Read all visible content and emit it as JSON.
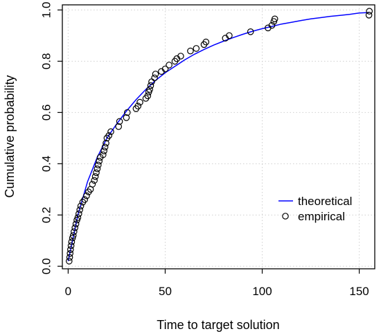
{
  "chart_data": {
    "type": "scatter",
    "xlabel": "Time to target solution",
    "ylabel": "Cumulative probability",
    "xlim": [
      -3,
      158
    ],
    "ylim": [
      -0.01,
      1.02
    ],
    "x_ticks": [
      "0",
      "50",
      "100",
      "150"
    ],
    "y_ticks": [
      "0.0",
      "0.2",
      "0.4",
      "0.6",
      "0.8",
      "1.0"
    ],
    "grid": true,
    "legend_position": "right",
    "series": [
      {
        "name": "theoretical",
        "kind": "line",
        "color": "#0000ff",
        "x": [
          0,
          5,
          10,
          15,
          20,
          25,
          30,
          35,
          40,
          45,
          50,
          55,
          60,
          65,
          70,
          75,
          80,
          85,
          90,
          95,
          100,
          105,
          110,
          115,
          120,
          125,
          130,
          135,
          140,
          145,
          150,
          155
        ],
        "values": [
          0.02,
          0.2,
          0.33,
          0.425,
          0.5,
          0.555,
          0.605,
          0.65,
          0.69,
          0.725,
          0.755,
          0.78,
          0.805,
          0.827,
          0.846,
          0.863,
          0.878,
          0.892,
          0.905,
          0.917,
          0.927,
          0.936,
          0.945,
          0.952,
          0.959,
          0.965,
          0.97,
          0.975,
          0.979,
          0.983,
          0.988,
          0.99
        ]
      },
      {
        "name": "empirical",
        "kind": "points",
        "color": "#000000",
        "points": [
          [
            0.5,
            0.02
          ],
          [
            0.8,
            0.035
          ],
          [
            1.0,
            0.05
          ],
          [
            1.2,
            0.065
          ],
          [
            1.5,
            0.08
          ],
          [
            1.8,
            0.095
          ],
          [
            2.2,
            0.11
          ],
          [
            2.6,
            0.12
          ],
          [
            3.0,
            0.135
          ],
          [
            3.5,
            0.15
          ],
          [
            4.0,
            0.165
          ],
          [
            4.5,
            0.18
          ],
          [
            5.0,
            0.19
          ],
          [
            5.5,
            0.205
          ],
          [
            6.0,
            0.22
          ],
          [
            6.5,
            0.235
          ],
          [
            7.5,
            0.25
          ],
          [
            8.5,
            0.26
          ],
          [
            9.5,
            0.275
          ],
          [
            10.5,
            0.29
          ],
          [
            11.5,
            0.3
          ],
          [
            12.5,
            0.32
          ],
          [
            13.5,
            0.335
          ],
          [
            14.0,
            0.35
          ],
          [
            14.5,
            0.365
          ],
          [
            15.0,
            0.38
          ],
          [
            15.5,
            0.395
          ],
          [
            16.0,
            0.41
          ],
          [
            16.5,
            0.425
          ],
          [
            18.0,
            0.435
          ],
          [
            18.5,
            0.45
          ],
          [
            19.0,
            0.465
          ],
          [
            19.5,
            0.48
          ],
          [
            20.0,
            0.5
          ],
          [
            21.0,
            0.51
          ],
          [
            22.0,
            0.525
          ],
          [
            26.0,
            0.545
          ],
          [
            26.5,
            0.565
          ],
          [
            30.0,
            0.58
          ],
          [
            30.5,
            0.6
          ],
          [
            35.0,
            0.615
          ],
          [
            36.0,
            0.625
          ],
          [
            37.0,
            0.64
          ],
          [
            40.0,
            0.655
          ],
          [
            41.0,
            0.665
          ],
          [
            41.5,
            0.68
          ],
          [
            42.0,
            0.69
          ],
          [
            42.5,
            0.705
          ],
          [
            43.0,
            0.72
          ],
          [
            44.5,
            0.735
          ],
          [
            45.0,
            0.75
          ],
          [
            48.0,
            0.76
          ],
          [
            50.0,
            0.77
          ],
          [
            52.0,
            0.785
          ],
          [
            55.0,
            0.8
          ],
          [
            56.0,
            0.81
          ],
          [
            58.0,
            0.82
          ],
          [
            63.0,
            0.84
          ],
          [
            66.0,
            0.85
          ],
          [
            70.0,
            0.865
          ],
          [
            71.0,
            0.875
          ],
          [
            81.0,
            0.89
          ],
          [
            83.0,
            0.9
          ],
          [
            94.0,
            0.915
          ],
          [
            103.0,
            0.93
          ],
          [
            105.0,
            0.94
          ],
          [
            106.0,
            0.955
          ],
          [
            106.5,
            0.965
          ],
          [
            155.0,
            0.98
          ],
          [
            155.2,
            0.995
          ]
        ]
      }
    ]
  }
}
